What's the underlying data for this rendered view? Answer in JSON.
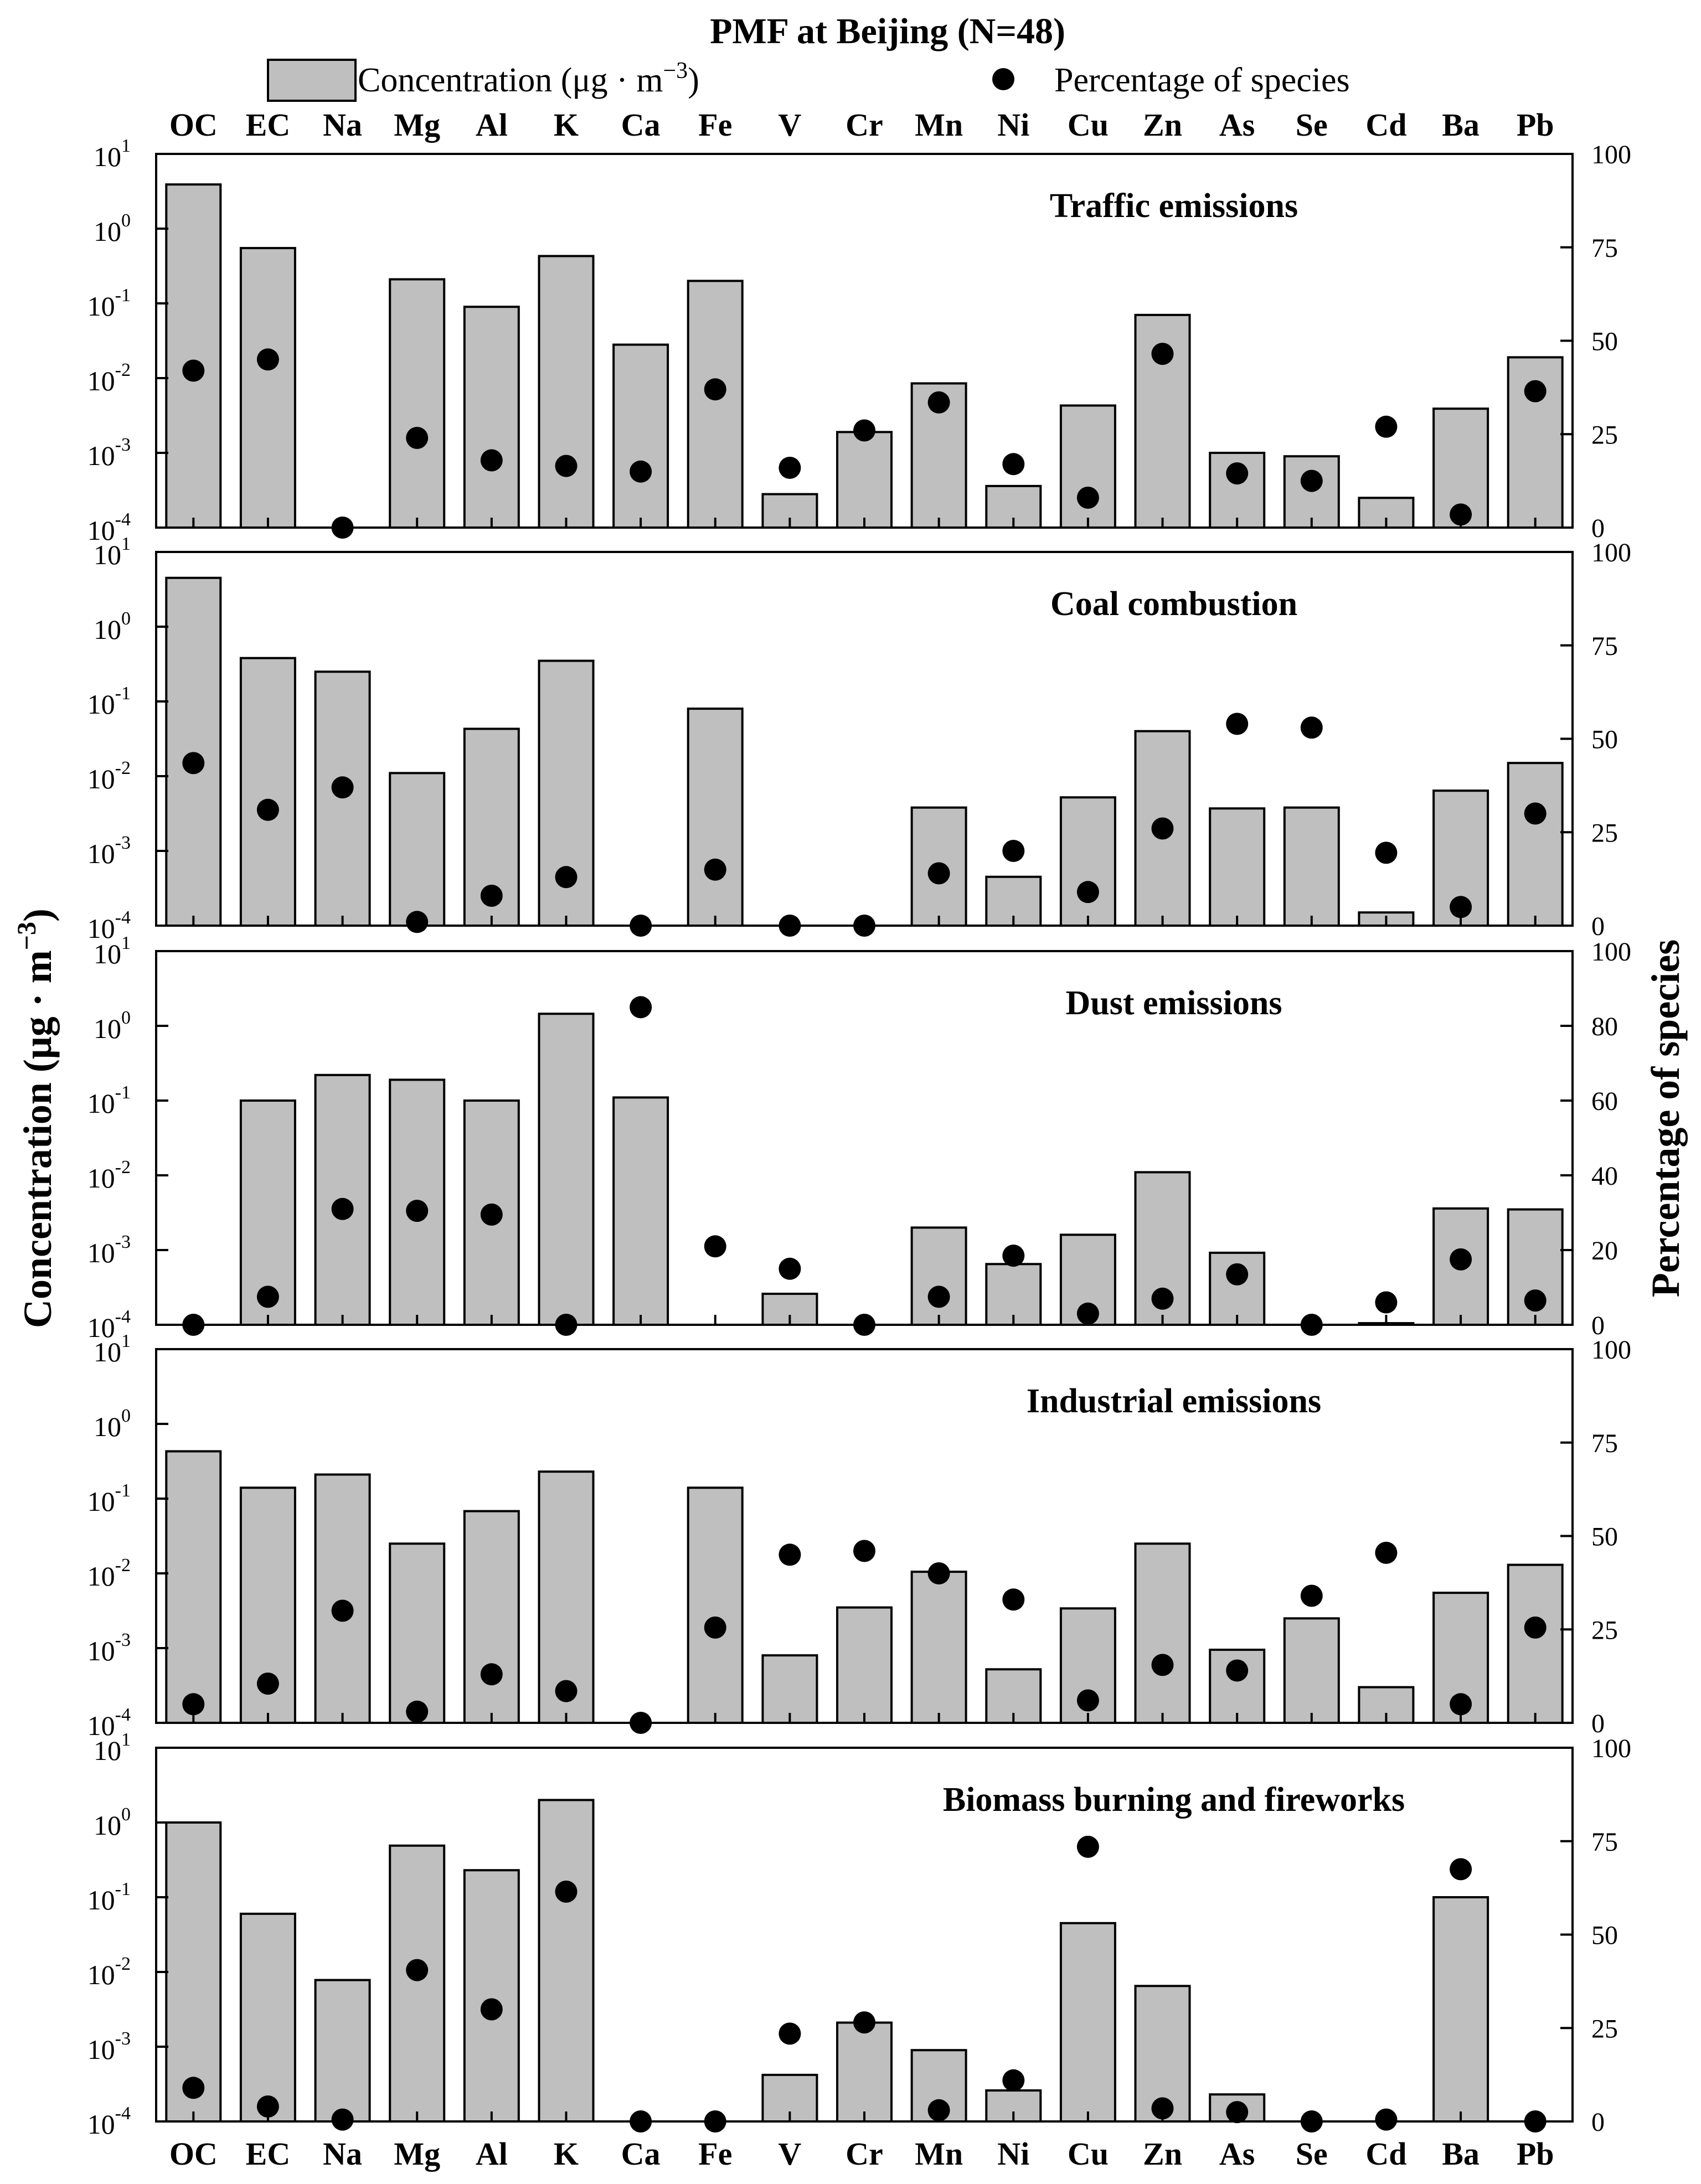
{
  "chart_data": {
    "type": "bar",
    "title": "PMF at Beijing (N=48)",
    "legend": {
      "bar_label": "Concentration (μg · m",
      "bar_label_sup": "−3",
      "bar_label_close": ")",
      "dot_label": "Percentage of species",
      "placement": "top"
    },
    "ylabel_left": "Concentration (μg · m",
    "ylabel_left_sup": "−3",
    "ylabel_left_close": ")",
    "ylabel_right": "Percentage of species",
    "left_axis": {
      "scale": "log",
      "range": [
        0.0001,
        10
      ],
      "tick_base": "10",
      "tick_exponents": [
        "1",
        "0",
        "-1",
        "-2",
        "-3",
        "-4"
      ]
    },
    "categories": [
      "OC",
      "EC",
      "Na",
      "Mg",
      "Al",
      "K",
      "Ca",
      "Fe",
      "V",
      "Cr",
      "Mn",
      "Ni",
      "Cu",
      "Zn",
      "As",
      "Se",
      "Cd",
      "Ba",
      "Pb"
    ],
    "panels": [
      {
        "name": "Traffic emissions",
        "right_ticks": [
          0,
          25,
          50,
          75,
          100
        ],
        "concentration": [
          3.9,
          0.55,
          0.0001,
          0.21,
          0.09,
          0.43,
          0.028,
          0.2,
          0.00028,
          0.0019,
          0.0085,
          0.00036,
          0.0043,
          0.07,
          0.001,
          0.0009,
          0.00025,
          0.0039,
          0.019
        ],
        "percentage": [
          42,
          45,
          0,
          24,
          18,
          16.5,
          15,
          37,
          16,
          26,
          33.5,
          17,
          8,
          46.5,
          14.5,
          12.5,
          27,
          3.5,
          36.5
        ]
      },
      {
        "name": "Coal combustion",
        "right_ticks": [
          0,
          25,
          50,
          75,
          100
        ],
        "concentration": [
          4.5,
          0.38,
          0.25,
          0.011,
          0.043,
          0.35,
          0.0001,
          0.08,
          0.0001,
          0.0001,
          0.0038,
          0.00045,
          0.0052,
          0.04,
          0.0037,
          0.0038,
          0.00015,
          0.0064,
          0.015
        ],
        "percentage": [
          43.5,
          31,
          37,
          1,
          8,
          13,
          0,
          15,
          0,
          0,
          14,
          20,
          9,
          26,
          54,
          53,
          19.5,
          5,
          30
        ]
      },
      {
        "name": "Dust emissions",
        "right_ticks": [
          0,
          20,
          40,
          60,
          80,
          100
        ],
        "concentration": [
          0.0001,
          0.1,
          0.22,
          0.19,
          0.1,
          1.45,
          0.11,
          0.0001,
          0.00026,
          0.0001,
          0.002,
          0.00065,
          0.0016,
          0.011,
          0.00092,
          0.0001,
          0.000105,
          0.0036,
          0.0035
        ],
        "percentage": [
          0,
          7.5,
          31,
          30.5,
          29.5,
          0,
          85,
          21,
          15,
          0,
          7.5,
          18.5,
          3,
          7,
          13.5,
          0,
          6,
          17.5,
          6.5
        ]
      },
      {
        "name": "Industrial emissions",
        "right_ticks": [
          0,
          25,
          50,
          75,
          100
        ],
        "concentration": [
          0.43,
          0.14,
          0.21,
          0.025,
          0.068,
          0.23,
          0.0001,
          0.14,
          0.0008,
          0.0035,
          0.0105,
          0.00052,
          0.0034,
          0.025,
          0.00095,
          0.0025,
          0.0003,
          0.0055,
          0.013
        ],
        "percentage": [
          5,
          10.5,
          30,
          3,
          13,
          8.5,
          0,
          25.5,
          45,
          46,
          40,
          33,
          6,
          15.5,
          14,
          34,
          45.5,
          5,
          25.5
        ]
      },
      {
        "name": "Biomass burning and fireworks",
        "right_ticks": [
          0,
          25,
          50,
          75,
          100
        ],
        "concentration": [
          1.0,
          0.06,
          0.0078,
          0.49,
          0.23,
          2.0,
          0.0001,
          0.0001,
          0.00042,
          0.0021,
          0.0009,
          0.00026,
          0.045,
          0.0065,
          0.00023,
          0.0001,
          0.0001,
          0.1,
          0.0001
        ],
        "percentage": [
          9,
          4,
          0.5,
          40.5,
          30,
          61.5,
          0,
          0,
          23.5,
          26.5,
          3,
          11,
          73.5,
          3.5,
          2.5,
          0,
          0.5,
          67.5,
          0
        ]
      }
    ]
  }
}
